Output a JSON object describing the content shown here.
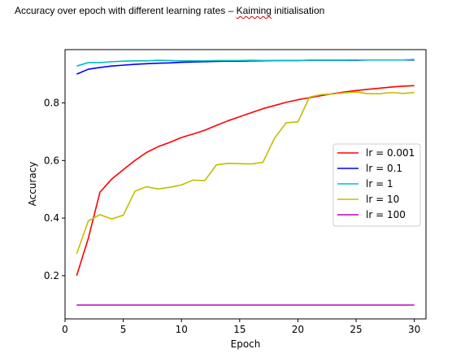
{
  "document": {
    "title_prefix": "Accuracy over epoch with different learning rates – ",
    "title_flagged_word": "Kaiming",
    "title_suffix": " initialisation"
  },
  "chart_data": {
    "type": "line",
    "title": "",
    "xlabel": "Epoch",
    "ylabel": "Accuracy",
    "xlim": [
      0,
      31
    ],
    "ylim": [
      0.05,
      0.985
    ],
    "xticks": [
      0,
      5,
      10,
      15,
      20,
      25,
      30
    ],
    "yticks": [
      0.2,
      0.4,
      0.6,
      0.8
    ],
    "ytick_labels": [
      "0.2",
      "0.4",
      "0.6",
      "0.8"
    ],
    "grid": false,
    "legend_position": "center-right",
    "x": [
      1,
      2,
      3,
      4,
      5,
      6,
      7,
      8,
      9,
      10,
      11,
      12,
      13,
      14,
      15,
      16,
      17,
      18,
      19,
      20,
      21,
      22,
      23,
      24,
      25,
      26,
      27,
      28,
      29,
      30
    ],
    "series": [
      {
        "name": "lr = 0.001",
        "color": "#ff0000",
        "values": [
          0.2,
          0.33,
          0.49,
          0.535,
          0.568,
          0.6,
          0.628,
          0.648,
          0.663,
          0.68,
          0.692,
          0.705,
          0.722,
          0.738,
          0.752,
          0.766,
          0.78,
          0.791,
          0.802,
          0.811,
          0.818,
          0.825,
          0.832,
          0.838,
          0.843,
          0.847,
          0.851,
          0.855,
          0.858,
          0.86
        ]
      },
      {
        "name": "lr = 0.1",
        "color": "#0000ff",
        "values": [
          0.9,
          0.917,
          0.923,
          0.928,
          0.931,
          0.934,
          0.936,
          0.938,
          0.939,
          0.941,
          0.942,
          0.943,
          0.944,
          0.945,
          0.945,
          0.946,
          0.946,
          0.947,
          0.947,
          0.947,
          0.948,
          0.948,
          0.948,
          0.948,
          0.948,
          0.949,
          0.949,
          0.949,
          0.949,
          0.949
        ]
      },
      {
        "name": "lr = 1",
        "color": "#00bfbf",
        "values": [
          0.928,
          0.94,
          0.94,
          0.943,
          0.945,
          0.946,
          0.946,
          0.948,
          0.947,
          0.946,
          0.946,
          0.946,
          0.947,
          0.947,
          0.947,
          0.948,
          0.947,
          0.947,
          0.947,
          0.947,
          0.948,
          0.948,
          0.948,
          0.948,
          0.949,
          0.949,
          0.949,
          0.949,
          0.949,
          0.951
        ]
      },
      {
        "name": "lr = 10",
        "color": "#bfbf00",
        "values": [
          0.276,
          0.39,
          0.412,
          0.397,
          0.41,
          0.493,
          0.509,
          0.501,
          0.507,
          0.515,
          0.532,
          0.53,
          0.585,
          0.59,
          0.589,
          0.588,
          0.594,
          0.678,
          0.731,
          0.734,
          0.82,
          0.829,
          0.831,
          0.835,
          0.838,
          0.832,
          0.832,
          0.836,
          0.833,
          0.836
        ]
      },
      {
        "name": "lr = 100",
        "color": "#bf00bf",
        "values": [
          0.098,
          0.098,
          0.098,
          0.098,
          0.098,
          0.098,
          0.098,
          0.098,
          0.098,
          0.098,
          0.098,
          0.098,
          0.098,
          0.098,
          0.098,
          0.098,
          0.098,
          0.098,
          0.098,
          0.098,
          0.098,
          0.098,
          0.098,
          0.098,
          0.098,
          0.098,
          0.098,
          0.098,
          0.098,
          0.098
        ]
      }
    ]
  }
}
